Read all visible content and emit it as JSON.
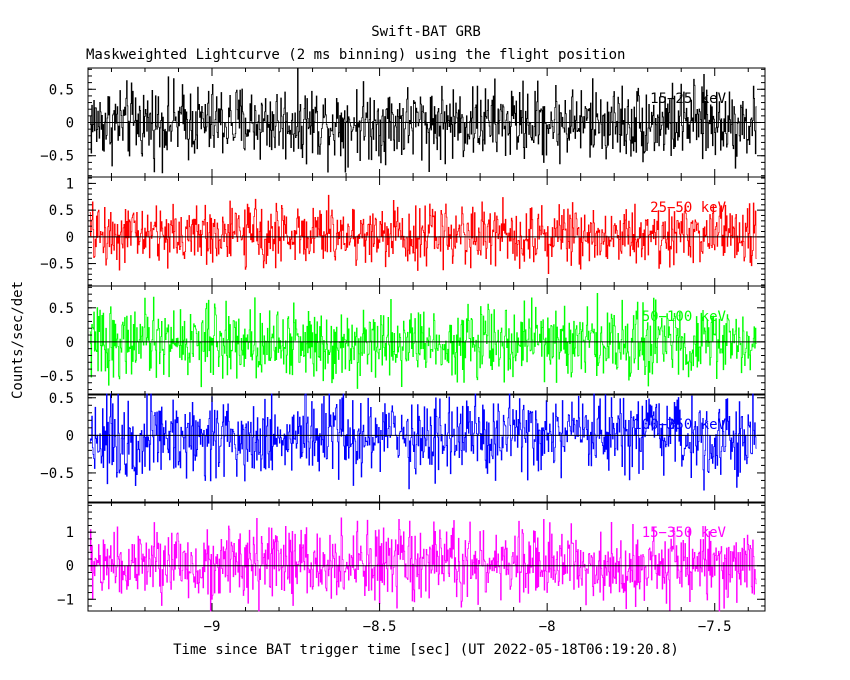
{
  "chart_data": {
    "type": "line",
    "title": "Swift-BAT GRB",
    "subtitle": "Maskweighted Lightcurve (2 ms binning) using the flight position",
    "xlabel": "Time since BAT trigger time [sec] (UT 2022-05-18T06:19:20.8)",
    "ylabel": "Counts/sec/det",
    "xlim": [
      -9.37,
      -7.35
    ],
    "x_start": -9.365,
    "x_end": -7.375,
    "bin_width": 0.002,
    "x_ticks": [
      -9,
      -8.5,
      -8,
      -7.5
    ],
    "x_tick_labels": [
      "−9",
      "−8.5",
      "−8",
      "−7.5"
    ],
    "panels": [
      {
        "name": "15-25 keV",
        "label": "15−25 keV",
        "color": "#000000",
        "ylim": [
          -0.82,
          0.82
        ],
        "y_ticks": [
          0.5,
          0,
          -0.5
        ],
        "y_tick_labels": [
          "0.5",
          "0",
          "−0.5"
        ],
        "noise_amplitude": 0.28,
        "bias": 0.0
      },
      {
        "name": "25-50 keV",
        "label": "25−50 keV",
        "color": "#ff0000",
        "ylim": [
          -0.92,
          1.12
        ],
        "y_ticks": [
          1,
          0.5,
          0,
          -0.5
        ],
        "y_tick_labels": [
          "1",
          "0.5",
          "0",
          "−0.5"
        ],
        "noise_amplitude": 0.28,
        "bias": 0.05
      },
      {
        "name": "50-100 keV",
        "label": "50−100 keV",
        "color": "#00ff00",
        "ylim": [
          -0.78,
          0.82
        ],
        "y_ticks": [
          0.5,
          0,
          -0.5
        ],
        "y_tick_labels": [
          "0.5",
          "0",
          "−0.5"
        ],
        "noise_amplitude": 0.26,
        "bias": 0.0
      },
      {
        "name": "100-350 keV",
        "label": "100−350 keV",
        "color": "#0000ff",
        "ylim": [
          -0.9,
          0.55
        ],
        "y_ticks": [
          0.5,
          0,
          -0.5
        ],
        "y_tick_labels": [
          "0.5",
          "0",
          "−0.5"
        ],
        "noise_amplitude": 0.27,
        "bias": -0.02
      },
      {
        "name": "15-350 keV",
        "label": "15−350 keV",
        "color": "#ff00ff",
        "ylim": [
          -1.35,
          1.9
        ],
        "y_ticks": [
          1,
          0,
          -1
        ],
        "y_tick_labels": [
          "1",
          "0",
          "−1"
        ],
        "noise_amplitude": 0.55,
        "bias": 0.03
      }
    ]
  }
}
